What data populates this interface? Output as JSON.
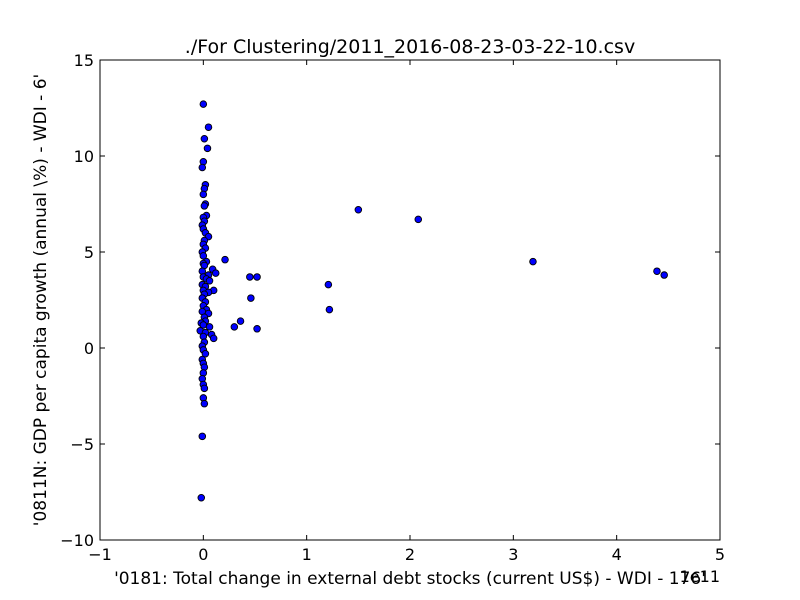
{
  "chart_data": {
    "type": "scatter",
    "title": "./For Clustering/2011_2016-08-23-03-22-10.csv",
    "xlabel": "'0181: Total change in external debt stocks  (current US$) - WDI - 176'",
    "ylabel": "'0811N: GDP per capita growth  (annual \\%) - WDI - 6'",
    "x_offset_label": "1e11",
    "xlim": [
      -1,
      5
    ],
    "ylim": [
      -10,
      15
    ],
    "x_ticks": [
      -1,
      0,
      1,
      2,
      3,
      4,
      5
    ],
    "x_tick_labels": [
      "−1",
      "0",
      "1",
      "2",
      "3",
      "4",
      "5"
    ],
    "y_ticks": [
      -10,
      -5,
      0,
      5,
      10,
      15
    ],
    "y_tick_labels": [
      "−10",
      "−5",
      "0",
      "5",
      "10",
      "15"
    ],
    "grid": false,
    "legend": "none",
    "marker_color": "#0000ff",
    "series": [
      {
        "points": [
          [
            0.0,
            12.7
          ],
          [
            0.05,
            11.5
          ],
          [
            0.01,
            10.9
          ],
          [
            0.04,
            10.4
          ],
          [
            0.0,
            9.7
          ],
          [
            -0.01,
            9.4
          ],
          [
            0.02,
            8.5
          ],
          [
            0.01,
            8.3
          ],
          [
            0.0,
            8.0
          ],
          [
            0.02,
            7.5
          ],
          [
            0.01,
            7.4
          ],
          [
            0.03,
            6.9
          ],
          [
            0.0,
            6.8
          ],
          [
            0.01,
            6.6
          ],
          [
            -0.01,
            6.4
          ],
          [
            0.0,
            6.2
          ],
          [
            0.02,
            6.0
          ],
          [
            0.05,
            5.8
          ],
          [
            0.01,
            5.6
          ],
          [
            0.0,
            5.4
          ],
          [
            0.02,
            5.2
          ],
          [
            -0.01,
            5.0
          ],
          [
            0.0,
            4.8
          ],
          [
            0.03,
            4.5
          ],
          [
            0.0,
            4.4
          ],
          [
            0.01,
            4.3
          ],
          [
            0.09,
            4.1
          ],
          [
            0.12,
            3.9
          ],
          [
            -0.01,
            4.0
          ],
          [
            0.05,
            3.8
          ],
          [
            0.0,
            3.7
          ],
          [
            0.03,
            3.6
          ],
          [
            0.06,
            3.5
          ],
          [
            -0.01,
            3.3
          ],
          [
            0.02,
            3.2
          ],
          [
            0.0,
            3.0
          ],
          [
            0.1,
            3.0
          ],
          [
            0.05,
            2.9
          ],
          [
            0.01,
            2.8
          ],
          [
            -0.01,
            2.6
          ],
          [
            0.02,
            2.4
          ],
          [
            0.0,
            2.2
          ],
          [
            0.03,
            2.0
          ],
          [
            -0.01,
            1.9
          ],
          [
            0.05,
            1.8
          ],
          [
            0.01,
            1.6
          ],
          [
            0.02,
            1.4
          ],
          [
            -0.02,
            1.3
          ],
          [
            0.0,
            1.2
          ],
          [
            0.06,
            1.1
          ],
          [
            -0.03,
            0.9
          ],
          [
            0.02,
            0.8
          ],
          [
            0.08,
            0.7
          ],
          [
            0.1,
            0.5
          ],
          [
            0.0,
            0.6
          ],
          [
            0.01,
            0.3
          ],
          [
            -0.01,
            0.1
          ],
          [
            0.0,
            -0.1
          ],
          [
            0.02,
            -0.3
          ],
          [
            -0.01,
            -0.6
          ],
          [
            0.0,
            -0.8
          ],
          [
            0.01,
            -1.0
          ],
          [
            0.0,
            -1.3
          ],
          [
            -0.01,
            -1.6
          ],
          [
            0.0,
            -1.9
          ],
          [
            0.01,
            -2.1
          ],
          [
            0.0,
            -2.6
          ],
          [
            0.01,
            -2.9
          ],
          [
            -0.01,
            -4.6
          ],
          [
            -0.02,
            -7.8
          ],
          [
            0.21,
            4.6
          ],
          [
            0.3,
            1.1
          ],
          [
            0.36,
            1.4
          ],
          [
            0.45,
            3.7
          ],
          [
            0.46,
            2.6
          ],
          [
            0.52,
            3.7
          ],
          [
            0.52,
            1.0
          ],
          [
            1.21,
            3.3
          ],
          [
            1.22,
            2.0
          ],
          [
            1.5,
            7.2
          ],
          [
            2.08,
            6.7
          ],
          [
            3.19,
            4.5
          ],
          [
            4.39,
            4.0
          ],
          [
            4.46,
            3.8
          ]
        ]
      }
    ]
  }
}
